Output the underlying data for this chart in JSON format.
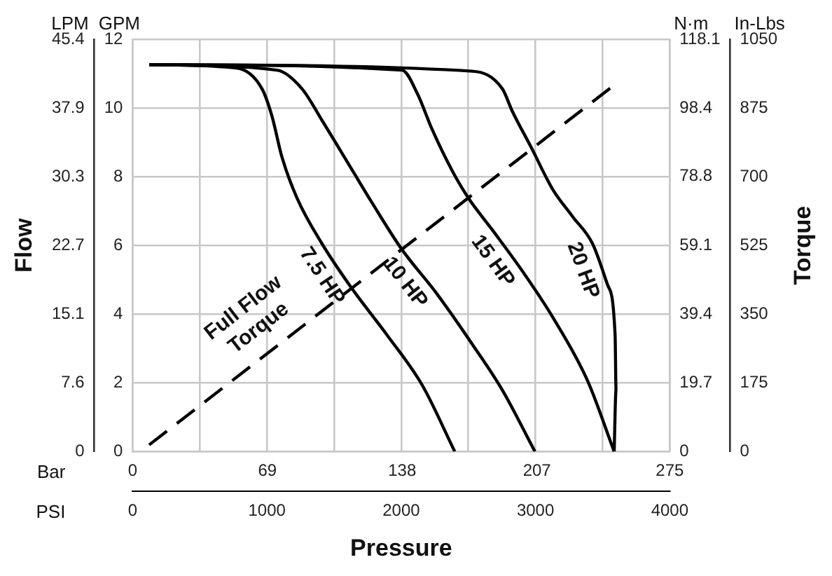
{
  "chart_data": {
    "type": "line",
    "xlabel": "Pressure",
    "ylabel": "Flow",
    "y2label": "Torque",
    "xlim": [
      0,
      4000
    ],
    "xticks": [
      0,
      {
        "value": 500,
        "label": null
      },
      1000,
      {
        "value": 1500,
        "label": null
      },
      2000,
      {
        "value": 2500,
        "label": null
      },
      3000,
      {
        "value": 3500,
        "label": null
      },
      4000
    ],
    "x2lim": [
      0,
      275
    ],
    "x2ticks": [
      0,
      69,
      138,
      207,
      275
    ],
    "ylim": [
      0,
      12
    ],
    "yticks": [
      0,
      2,
      4,
      6,
      8,
      10,
      12
    ],
    "y2lim": [
      0,
      118.1
    ],
    "y2ticks": [
      0,
      19.7,
      39.4,
      59.1,
      78.8,
      98.4,
      118.1
    ],
    "y3lim": [
      0,
      1050
    ],
    "y3ticks": [
      0,
      175,
      350,
      525,
      700,
      875,
      1050
    ],
    "grid": true,
    "legend": false,
    "marker": "none",
    "annotations": [
      "LPM",
      "GPM",
      "N·m",
      "In-Lbs",
      "Bar",
      "PSI",
      "0",
      "7.6",
      "15.1",
      "22.7",
      "30.3",
      "37.9",
      "45.4"
    ],
    "series": [
      {
        "name": "7.5 HP",
        "color": "#000000",
        "x": [
          123,
          776,
          963,
          1037,
          1112,
          1224,
          1410,
          1634,
          1895,
          2157,
          2399
        ],
        "values": [
          11.26,
          11.16,
          10.56,
          9.77,
          8.57,
          7.38,
          6.05,
          4.74,
          3.39,
          1.93,
          0
        ]
      },
      {
        "name": "10 HP",
        "color": "#000000",
        "x": [
          123,
          1075,
          1261,
          1410,
          1597,
          1783,
          2000,
          2268,
          2530,
          2753,
          2996
        ],
        "values": [
          11.26,
          11.1,
          10.56,
          9.64,
          8.44,
          7.24,
          5.91,
          4.58,
          3.12,
          1.79,
          0
        ]
      },
      {
        "name": "15 HP",
        "color": "#000000",
        "x": [
          123,
          2007,
          2119,
          2231,
          2380,
          2500,
          2679,
          2903,
          3127,
          3388,
          3586
        ],
        "values": [
          11.26,
          11.1,
          10.43,
          9.37,
          8.17,
          7.38,
          6.45,
          5.25,
          3.92,
          2.06,
          0
        ]
      },
      {
        "name": "20 HP",
        "color": "#000000",
        "x": [
          123,
          2530,
          2753,
          2828,
          2970,
          3127,
          3276,
          3425,
          3537,
          3593,
          3600,
          3586
        ],
        "values": [
          11.26,
          11.07,
          10.56,
          9.9,
          8.84,
          7.64,
          6.84,
          6.05,
          4.85,
          3.39,
          1.79,
          0
        ]
      },
      {
        "name": "Full Flow Torque",
        "color": "#000000",
        "axis": "y3",
        "line_style": "dashed",
        "x": [
          123,
          3574
        ],
        "values": [
          17,
          930
        ]
      }
    ]
  }
}
